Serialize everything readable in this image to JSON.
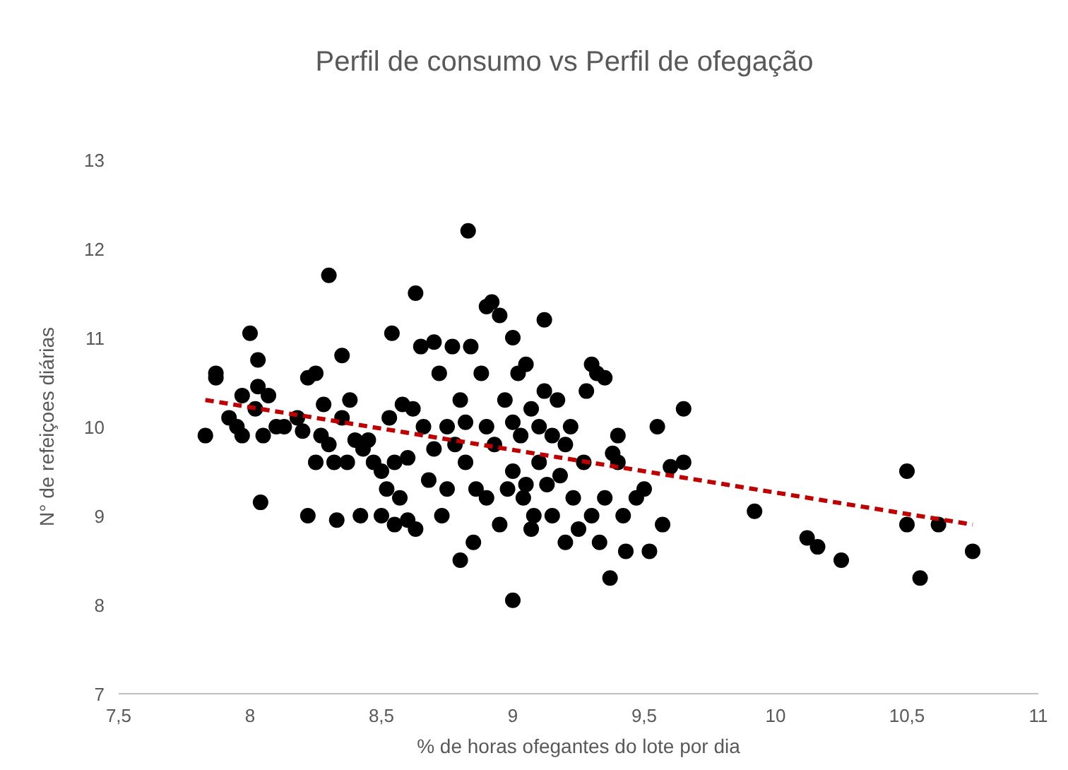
{
  "chart_data": {
    "type": "scatter",
    "title": "Perfil de consumo vs Perfil de ofegação",
    "xlabel": "% de horas ofegantes do lote por dia",
    "ylabel": "N° de refeiçoes diárias",
    "xlim": [
      7.5,
      11
    ],
    "ylim": [
      7,
      13
    ],
    "xticks": [
      {
        "value": 7.5,
        "label": "7,5"
      },
      8,
      {
        "value": 8.5,
        "label": "8,5"
      },
      9,
      {
        "value": 9.5,
        "label": "9,5"
      },
      10,
      {
        "value": 10.5,
        "label": "10,5"
      },
      11
    ],
    "yticks": [
      7,
      8,
      9,
      10,
      11,
      12,
      13
    ],
    "grid": false,
    "series": [
      {
        "marker": "circle",
        "color": "#000000",
        "x": [
          7.83,
          7.87,
          7.87,
          7.92,
          7.95,
          7.97,
          7.97,
          8.0,
          8.02,
          8.03,
          8.03,
          8.04,
          8.05,
          8.07,
          8.1,
          8.13,
          8.18,
          8.2,
          8.22,
          8.22,
          8.25,
          8.25,
          8.27,
          8.28,
          8.3,
          8.3,
          8.32,
          8.33,
          8.35,
          8.35,
          8.37,
          8.38,
          8.4,
          8.42,
          8.43,
          8.45,
          8.47,
          8.5,
          8.5,
          8.52,
          8.53,
          8.54,
          8.55,
          8.55,
          8.57,
          8.58,
          8.6,
          8.6,
          8.62,
          8.63,
          8.63,
          8.65,
          8.66,
          8.68,
          8.7,
          8.7,
          8.72,
          8.73,
          8.75,
          8.75,
          8.77,
          8.78,
          8.8,
          8.8,
          8.82,
          8.82,
          8.83,
          8.84,
          8.85,
          8.86,
          8.88,
          8.9,
          8.9,
          8.9,
          8.92,
          8.93,
          8.95,
          8.95,
          8.97,
          8.98,
          9.0,
          9.0,
          9.0,
          9.0,
          9.02,
          9.03,
          9.04,
          9.05,
          9.05,
          9.07,
          9.07,
          9.08,
          9.1,
          9.1,
          9.12,
          9.12,
          9.13,
          9.15,
          9.15,
          9.17,
          9.18,
          9.2,
          9.2,
          9.22,
          9.23,
          9.25,
          9.27,
          9.28,
          9.3,
          9.3,
          9.32,
          9.33,
          9.35,
          9.35,
          9.37,
          9.38,
          9.4,
          9.4,
          9.42,
          9.43,
          9.47,
          9.5,
          9.52,
          9.55,
          9.57,
          9.6,
          9.65,
          9.65,
          9.92,
          10.12,
          10.16,
          10.25,
          10.5,
          10.5,
          10.55,
          10.62,
          10.75
        ],
        "values": [
          9.9,
          10.6,
          10.55,
          10.1,
          10.0,
          9.9,
          10.35,
          11.05,
          10.2,
          10.75,
          10.45,
          9.15,
          9.9,
          10.35,
          10.0,
          10.0,
          10.1,
          9.95,
          10.55,
          9.0,
          10.6,
          9.6,
          9.9,
          10.25,
          11.7,
          9.8,
          9.6,
          8.95,
          10.8,
          10.1,
          9.6,
          10.3,
          9.85,
          9.0,
          9.75,
          9.85,
          9.6,
          9.5,
          9.0,
          9.3,
          10.1,
          11.05,
          9.6,
          8.9,
          9.2,
          10.25,
          9.65,
          8.95,
          10.2,
          11.5,
          8.85,
          10.9,
          10.0,
          9.4,
          10.95,
          9.75,
          10.6,
          9.0,
          10.0,
          9.3,
          10.9,
          9.8,
          10.3,
          8.5,
          10.05,
          9.6,
          12.2,
          10.9,
          8.7,
          9.3,
          10.6,
          11.35,
          10.0,
          9.2,
          11.4,
          9.8,
          11.25,
          8.9,
          10.3,
          9.3,
          11.0,
          10.05,
          9.5,
          8.05,
          10.6,
          9.9,
          9.2,
          10.7,
          9.35,
          10.2,
          8.85,
          9.0,
          10.0,
          9.6,
          11.2,
          10.4,
          9.35,
          9.9,
          9.0,
          10.3,
          9.45,
          9.8,
          8.7,
          10.0,
          9.2,
          8.85,
          9.6,
          10.4,
          10.7,
          9.0,
          10.6,
          8.7,
          10.55,
          9.2,
          8.3,
          9.7,
          9.9,
          9.6,
          9.0,
          8.6,
          9.2,
          9.3,
          8.6,
          10.0,
          8.9,
          9.55,
          10.2,
          9.6,
          9.05,
          8.75,
          8.65,
          8.5,
          9.5,
          8.9,
          8.3,
          8.9,
          8.6
        ]
      },
      {
        "type": "line",
        "color": "#c00000",
        "line_style": "dashed",
        "marker": "none",
        "x": [
          7.83,
          10.75
        ],
        "values": [
          10.3,
          8.9
        ]
      }
    ]
  }
}
